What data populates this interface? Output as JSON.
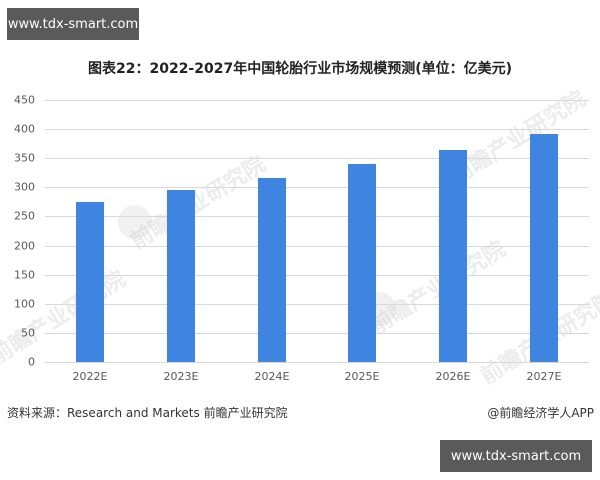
{
  "badges": {
    "top": "www.tdx-smart.com",
    "bottom": "www.tdx-smart.com"
  },
  "watermark": "前瞻产业研究院",
  "footer": {
    "source": "资料来源：Research and Markets 前瞻产业研究院",
    "credit": "@前瞻经济学人APP"
  },
  "chart_data": {
    "type": "bar",
    "title": "图表22：2022-2027年中国轮胎行业市场规模预测(单位：亿美元)",
    "xlabel": "",
    "ylabel": "",
    "categories": [
      "2022E",
      "2023E",
      "2024E",
      "2025E",
      "2026E",
      "2027E"
    ],
    "values": [
      275,
      296,
      316,
      340,
      364,
      391
    ],
    "ylim": [
      0,
      450
    ],
    "yticks": [
      0,
      50,
      100,
      150,
      200,
      250,
      300,
      350,
      400,
      450
    ],
    "grid": true,
    "legend": "none",
    "bar_color": "#3f84e0"
  }
}
